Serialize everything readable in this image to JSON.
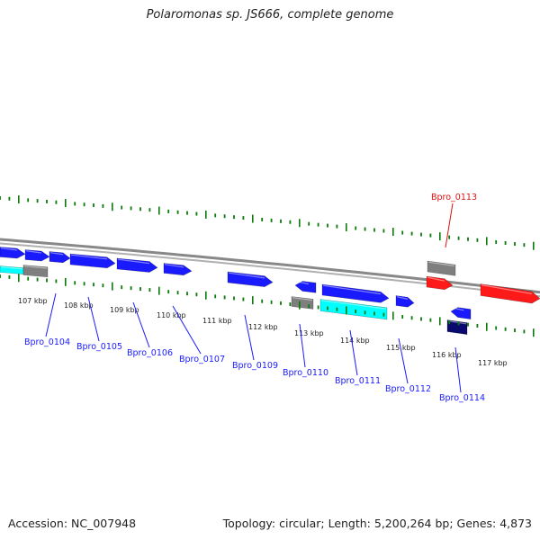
{
  "title": "Polaromonas sp. JS666, complete genome",
  "accession": "Accession: NC_007948",
  "summary": "Topology: circular; Length: 5,200,264 bp; Genes: 4,873",
  "colors": {
    "forward_gene": "#1a1aff",
    "reverse_gene": "#ff1a1a",
    "rna_gene": "#7f7f7f",
    "cyan_feature": "#00ffff",
    "dark_feature": "#0a0a6e",
    "tick": "#0a7a0a",
    "backbone": "#888888",
    "label_forward": "#1a1aff",
    "label_reverse": "#dd1111"
  },
  "scale_labels": [
    "107 kbp",
    "108 kbp",
    "109 kbp",
    "110 kbp",
    "111 kbp",
    "112 kbp",
    "113 kbp",
    "114 kbp",
    "115 kbp",
    "116 kbp",
    "117 kbp"
  ],
  "gene_labels": [
    {
      "text": "Bpro_0104",
      "strand": "forward"
    },
    {
      "text": "Bpro_0105",
      "strand": "forward"
    },
    {
      "text": "Bpro_0106",
      "strand": "forward"
    },
    {
      "text": "Bpro_0107",
      "strand": "forward"
    },
    {
      "text": "Bpro_0109",
      "strand": "forward"
    },
    {
      "text": "Bpro_0110",
      "strand": "forward"
    },
    {
      "text": "Bpro_0111",
      "strand": "forward"
    },
    {
      "text": "Bpro_0112",
      "strand": "forward"
    },
    {
      "text": "Bpro_0113",
      "strand": "reverse"
    },
    {
      "text": "Bpro_0114",
      "strand": "forward"
    }
  ]
}
